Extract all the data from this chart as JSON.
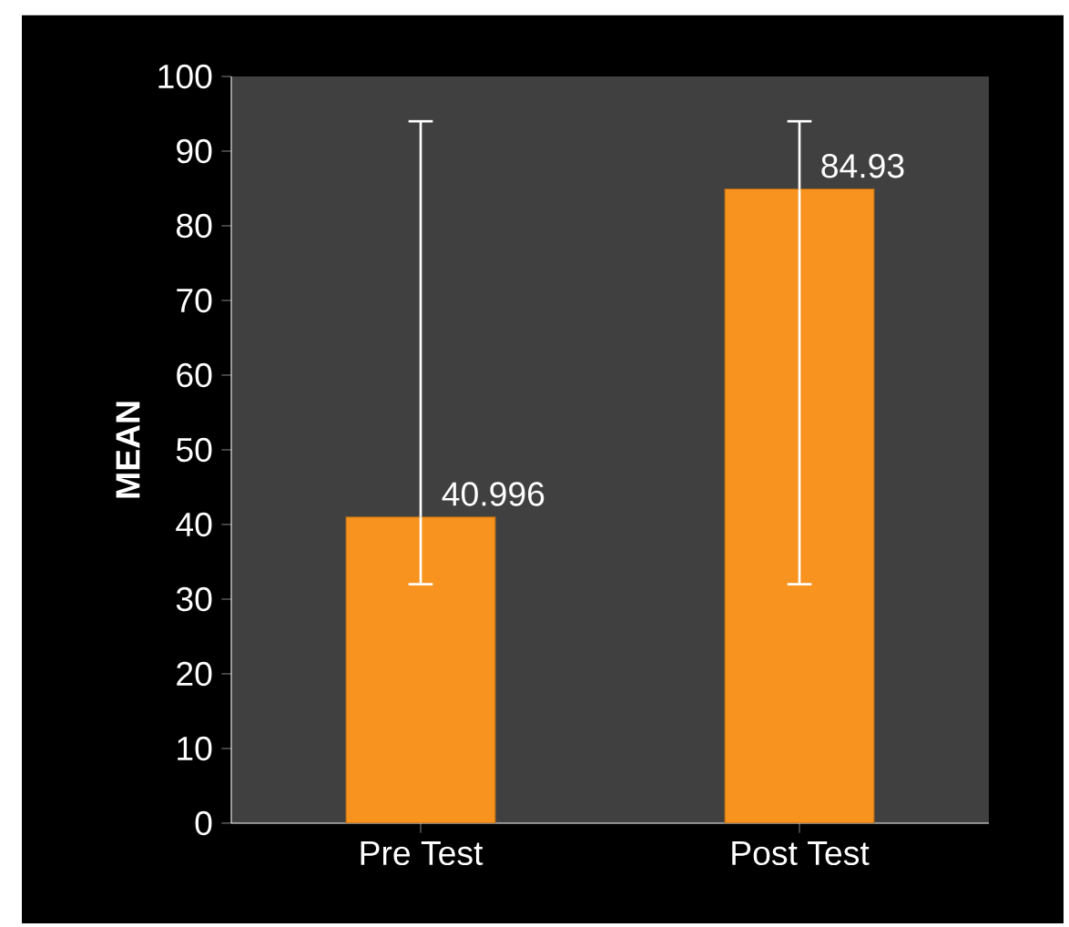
{
  "chart_data": {
    "type": "bar",
    "ylabel": "MEAN",
    "categories": [
      "Pre Test",
      "Post Test"
    ],
    "values": [
      40.996,
      84.93
    ],
    "errors": [
      [
        32,
        94
      ],
      [
        32,
        94
      ]
    ],
    "color": "#f7931e",
    "ylim": [
      0,
      100
    ],
    "yticks": [
      0,
      10,
      20,
      30,
      40,
      50,
      60,
      70,
      80,
      90,
      100
    ],
    "data_labels": true
  }
}
